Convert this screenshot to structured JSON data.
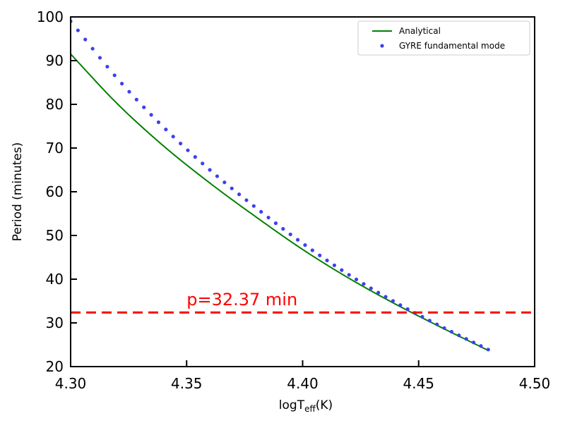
{
  "chart_data": {
    "type": "line",
    "title": "",
    "xlabel": {
      "base": "logT",
      "subscript": "eff",
      "suffix": "(K)"
    },
    "ylabel": "Period (minutes)",
    "xlim": [
      4.3,
      4.5
    ],
    "ylim": [
      20,
      100
    ],
    "xticks": [
      4.3,
      4.35,
      4.4,
      4.45,
      4.5
    ],
    "xtick_labels": [
      "4.30",
      "4.35",
      "4.40",
      "4.45",
      "4.50"
    ],
    "yticks": [
      20,
      30,
      40,
      50,
      60,
      70,
      80,
      90,
      100
    ],
    "ytick_labels": [
      "20",
      "30",
      "40",
      "50",
      "60",
      "70",
      "80",
      "90",
      "100"
    ],
    "legend_position": "top-right",
    "series": [
      {
        "name": "Analytical",
        "style": "line",
        "color": "#008000",
        "x": [
          4.3,
          4.32,
          4.34,
          4.36,
          4.38,
          4.4,
          4.42,
          4.44,
          4.46,
          4.48
        ],
        "y": [
          91.5,
          80.2,
          70.5,
          62.0,
          54.2,
          46.8,
          40.2,
          34.3,
          28.9,
          23.7
        ]
      },
      {
        "name": "GYRE fundamental mode",
        "style": "dots",
        "color": "#3f3fef",
        "x": [
          4.3,
          4.32,
          4.34,
          4.36,
          4.38,
          4.4,
          4.42,
          4.44,
          4.46,
          4.48
        ],
        "y": [
          99.0,
          86.0,
          74.8,
          65.0,
          56.3,
          48.2,
          41.0,
          34.7,
          29.1,
          23.9
        ]
      }
    ],
    "hline": {
      "y": 32.37,
      "color": "#ff0000",
      "style": "dashed"
    },
    "annotations": [
      {
        "text": "p=32.37 min",
        "x": 4.35,
        "y": 34.0,
        "color": "#ff0000"
      }
    ]
  }
}
